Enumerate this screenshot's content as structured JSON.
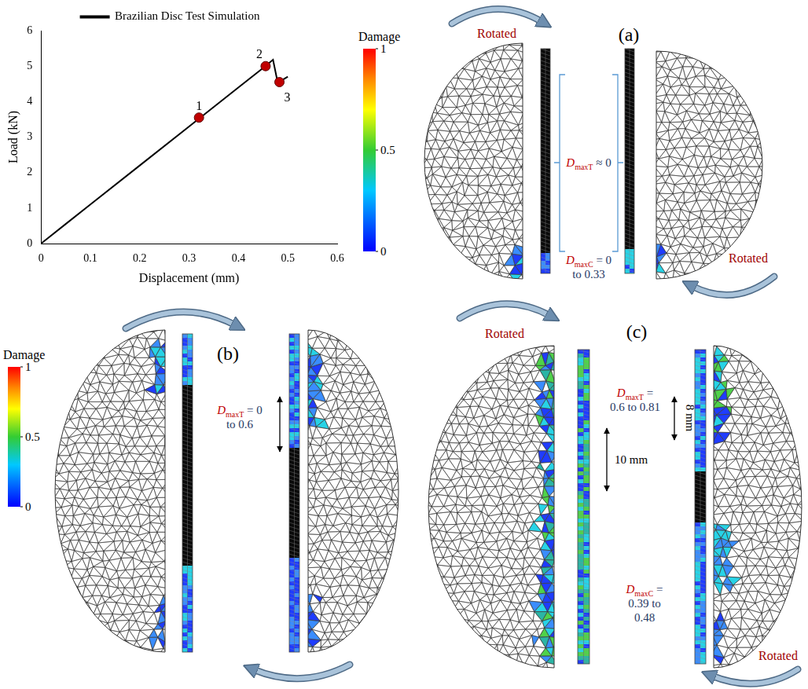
{
  "chart_data": {
    "type": "line",
    "xlabel": "Displacement (mm)",
    "ylabel": "Load (kN)",
    "xlim": [
      0,
      0.6
    ],
    "xticks": [
      0,
      0.1,
      0.2,
      0.3,
      0.4,
      0.5,
      0.6
    ],
    "ylim": [
      0,
      6
    ],
    "yticks": [
      0,
      1,
      2,
      3,
      4,
      5,
      6
    ],
    "grid": false,
    "legend": "top",
    "series": [
      {
        "name": "Brazilian Disc Test Simulation",
        "color": "#000000",
        "type": "line",
        "marker": "none",
        "line_style": "solid",
        "x": [
          0,
          0.05,
          0.1,
          0.2,
          0.3,
          0.4,
          0.45,
          0.47,
          0.48,
          0.49,
          0.5
        ],
        "values": [
          0,
          0.55,
          1.1,
          2.2,
          3.3,
          4.4,
          4.95,
          5.18,
          4.5,
          4.62,
          4.7
        ]
      },
      {
        "color": "#c00000",
        "type": "scatter",
        "marker": "circle",
        "x": [
          0.32,
          0.455,
          0.483
        ],
        "values": [
          3.55,
          5.0,
          4.55
        ],
        "point_labels": [
          "1",
          "2",
          "3"
        ]
      }
    ]
  },
  "colorbar": {
    "title": "Damage",
    "range": [
      0,
      1
    ],
    "ticks": [
      0,
      0.5,
      1
    ]
  },
  "panels": [
    {
      "label": "(a)",
      "arrow_labels": {
        "top": "Rotated",
        "bottom": "Rotated"
      },
      "annotations": [
        {
          "symbol": "D",
          "subscript": "maxT",
          "text": [
            "≈ 0"
          ]
        },
        {
          "symbol": "D",
          "subscript": "maxC",
          "text": [
            "= 0",
            "to 0.33"
          ]
        }
      ]
    },
    {
      "label": "(b)",
      "annotations": [
        {
          "symbol": "D",
          "subscript": "maxT",
          "text": [
            "= 0",
            "to 0.6"
          ]
        }
      ]
    },
    {
      "label": "(c)",
      "arrow_labels": {
        "top": "Rotated",
        "bottom": "Rotated"
      },
      "annotations": [
        {
          "symbol": "D",
          "subscript": "maxT",
          "text": [
            "=",
            "0.6 to 0.81"
          ]
        },
        {
          "symbol": "D",
          "subscript": "maxC",
          "text": [
            "=",
            "0.39 to",
            "0.48"
          ]
        }
      ],
      "dimensions": [
        "10 mm",
        "8 mm"
      ]
    }
  ]
}
